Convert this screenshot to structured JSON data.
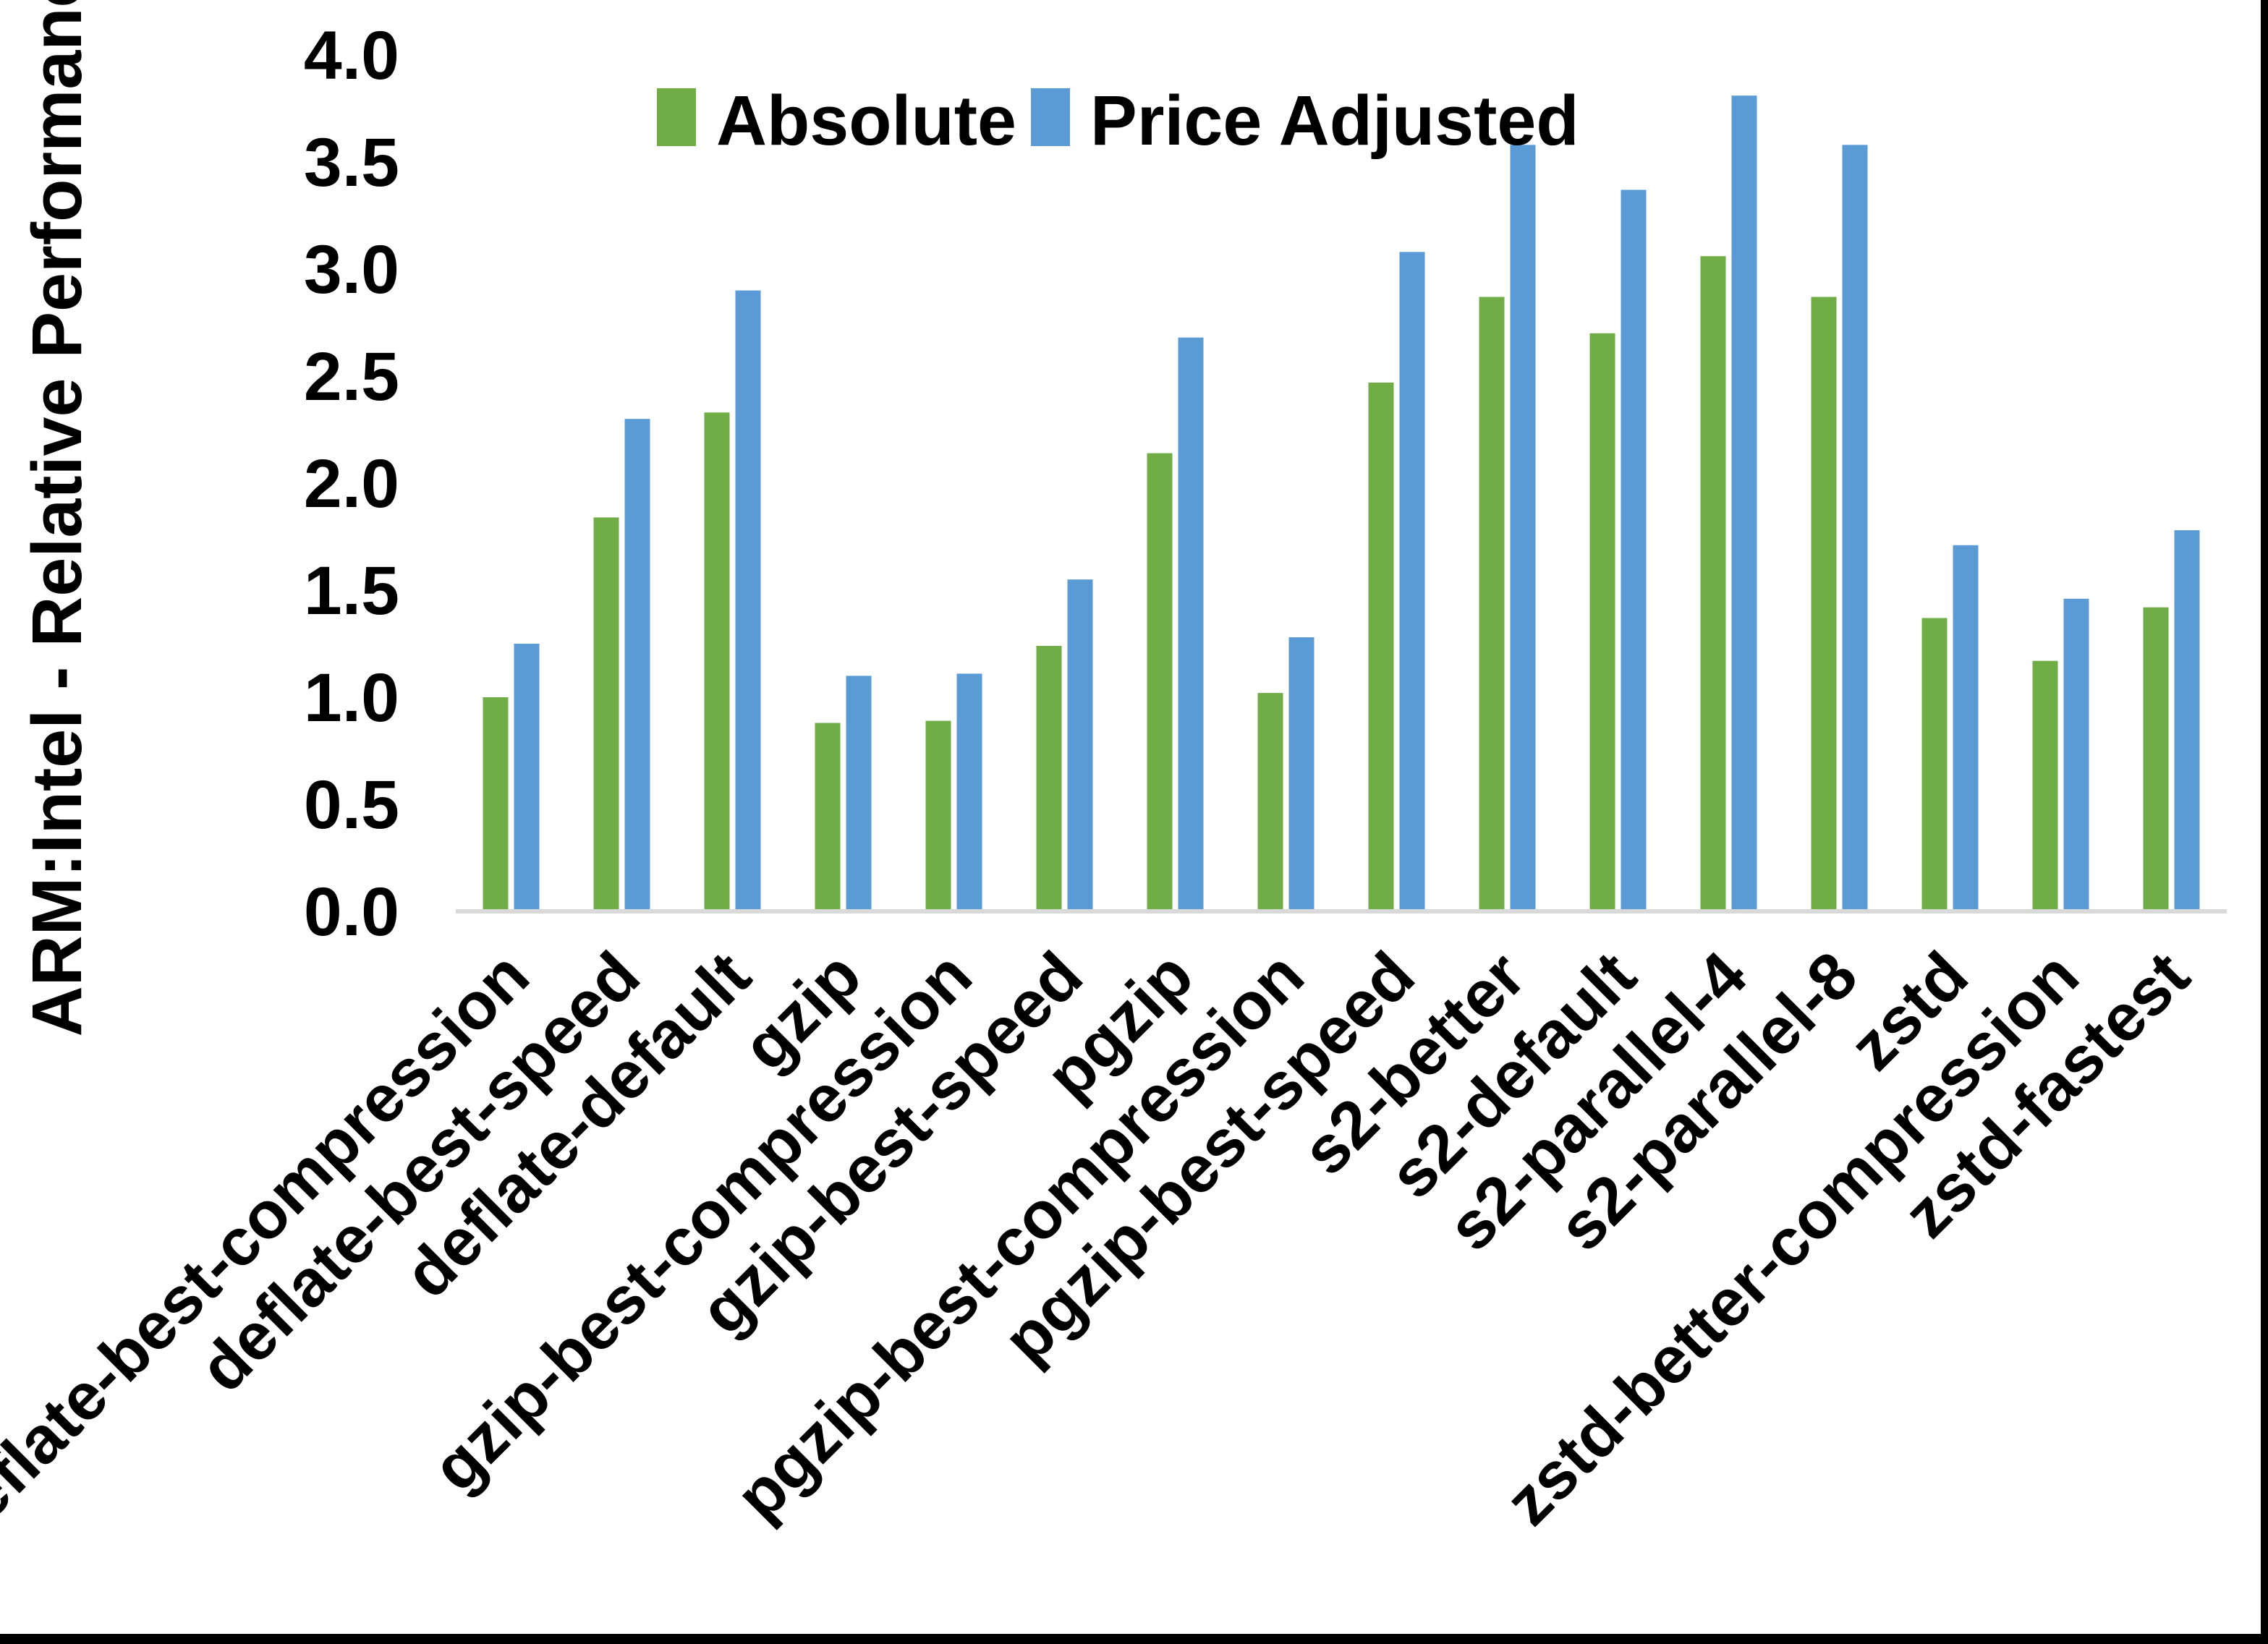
{
  "page": {
    "background": "#ffffff",
    "right_border_color": "#000000",
    "bottom_border_color": "#000000"
  },
  "chart_data": {
    "type": "bar",
    "title": "",
    "xlabel": "",
    "ylabel": "ARM:Intel - Relative Performance",
    "ylim": [
      0.0,
      4.0
    ],
    "ytick_step": 0.5,
    "yticks": [
      "0.0",
      "0.5",
      "1.0",
      "1.5",
      "2.0",
      "2.5",
      "3.0",
      "3.5",
      "4.0"
    ],
    "grid": false,
    "legend_position": "top-center",
    "axis_line_color": "#D9D9D9",
    "text_color": "#000000",
    "categories": [
      "deflate-best-compression",
      "deflate-best-speed",
      "deflate-default",
      "gzip",
      "gzip-best-compression",
      "gzip-best-speed",
      "pgzip",
      "pgzip-best-compression",
      "pgzip-best-speed",
      "s2-better",
      "s2-default",
      "s2-parallel-4",
      "s2-parallel-8",
      "zstd",
      "zstd-better-compression",
      "zstd-fastest"
    ],
    "series": [
      {
        "name": "Absolute",
        "color": "#70AD47",
        "values": [
          1.0,
          1.84,
          2.33,
          0.88,
          0.89,
          1.24,
          2.14,
          1.02,
          2.47,
          2.87,
          2.7,
          3.06,
          2.87,
          1.37,
          1.17,
          1.42
        ]
      },
      {
        "name": "Price Adjusted",
        "color": "#5B9BD5",
        "values": [
          1.25,
          2.3,
          2.9,
          1.1,
          1.11,
          1.55,
          2.68,
          1.28,
          3.08,
          3.58,
          3.37,
          3.81,
          3.58,
          1.71,
          1.46,
          1.78
        ]
      }
    ]
  }
}
